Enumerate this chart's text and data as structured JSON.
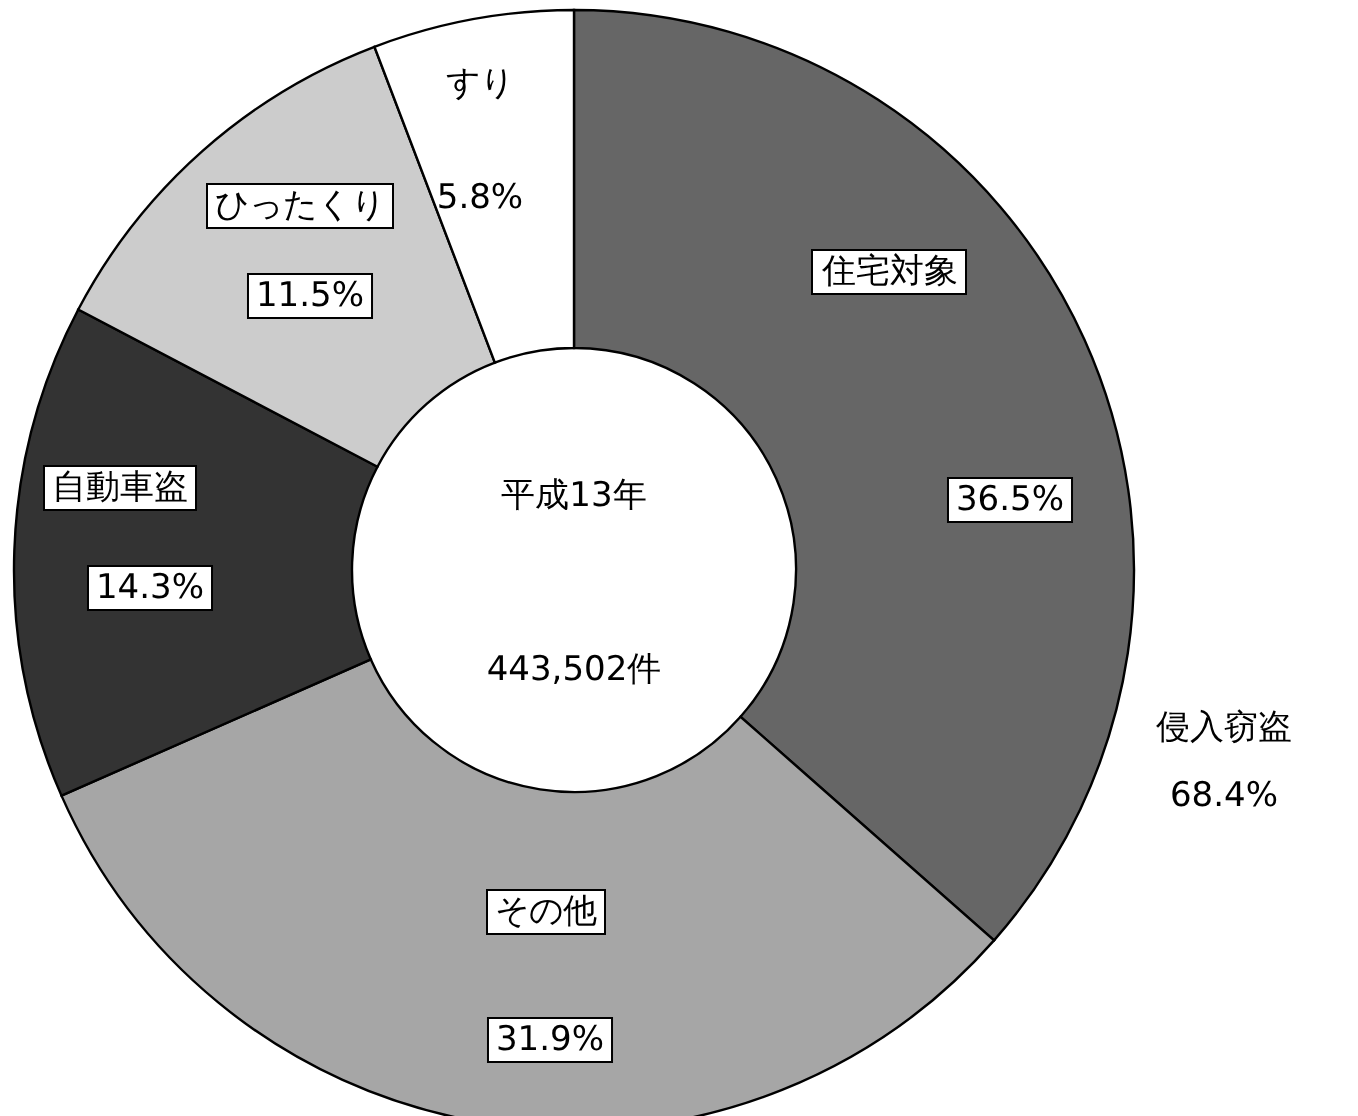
{
  "chart_data": {
    "type": "donut",
    "categories": [
      "住宅対象",
      "その他",
      "自動車盗",
      "ひったくり",
      "すり"
    ],
    "values": [
      36.5,
      31.9,
      14.3,
      11.5,
      5.8
    ],
    "colors": [
      "#666666",
      "#a6a6a6",
      "#333333",
      "#cccccc",
      "#ffffff"
    ],
    "value_labels": [
      "36.5%",
      "31.9%",
      "14.3%",
      "11.5%",
      "5.8%"
    ],
    "legend": false,
    "annotations": [
      "平成13年",
      "443,502件",
      "侵入窃盗",
      "68.4%"
    ]
  }
}
